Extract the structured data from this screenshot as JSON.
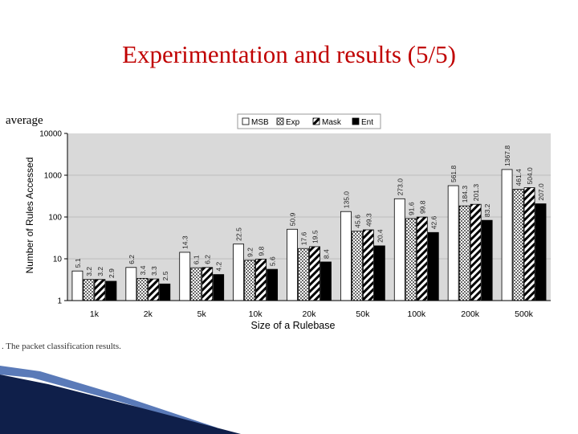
{
  "slide": {
    "title": "Experimentation and results (5/5)",
    "side_label": "average",
    "caption": ". The packet classification results."
  },
  "colors": {
    "title": "#c00000",
    "plot_background": "#d9d9d9",
    "bar_outline": "#000000",
    "deco_navy": "#0f1f4a",
    "deco_blue": "#5a7ab8"
  },
  "chart_data": {
    "type": "bar",
    "scale": "log",
    "title": "",
    "xlabel": "Size of a Rulebase",
    "ylabel": "Number of Rules Accessed",
    "ylim": [
      1,
      10000
    ],
    "yticks": [
      "1",
      "10",
      "100",
      "1000",
      "10000"
    ],
    "legend_position": "top-right",
    "grid": true,
    "categories": [
      "1k",
      "2k",
      "5k",
      "10k",
      "20k",
      "50k",
      "100k",
      "200k",
      "500k"
    ],
    "series": [
      {
        "name": "MSB",
        "style": "white",
        "values": [
          5.1,
          6.2,
          14.3,
          22.5,
          50.9,
          135.0,
          273.0,
          561.8,
          1367.8
        ]
      },
      {
        "name": "Exp",
        "style": "dotted",
        "values": [
          3.2,
          3.4,
          6.1,
          9.2,
          17.6,
          45.6,
          91.6,
          184.3,
          461.4
        ]
      },
      {
        "name": "Mask",
        "style": "diagonal",
        "values": [
          3.2,
          3.3,
          6.2,
          9.8,
          19.5,
          49.3,
          99.8,
          201.3,
          504.0
        ]
      },
      {
        "name": "Ent",
        "style": "black",
        "values": [
          2.9,
          2.5,
          4.2,
          5.6,
          8.4,
          20.4,
          42.6,
          83.2,
          207.0
        ]
      }
    ]
  }
}
